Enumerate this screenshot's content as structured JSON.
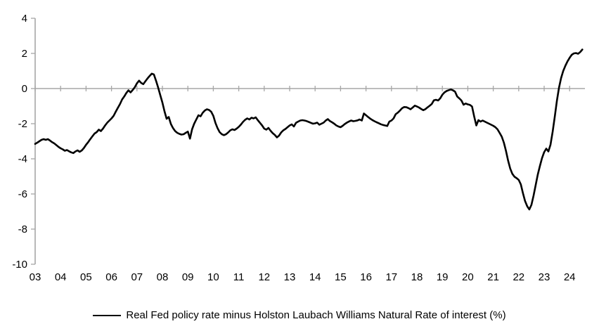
{
  "chart_data": {
    "type": "line",
    "title": "",
    "xlabel": "",
    "ylabel": "",
    "ylim": [
      -10,
      4
    ],
    "y_ticks": [
      4,
      2,
      0,
      -2,
      -4,
      -6,
      -8,
      -10
    ],
    "x_tick_labels": [
      "03",
      "04",
      "05",
      "06",
      "07",
      "08",
      "09",
      "10",
      "11",
      "12",
      "13",
      "14",
      "15",
      "16",
      "17",
      "18",
      "19",
      "20",
      "21",
      "22",
      "23",
      "24"
    ],
    "x_range_years": [
      2003.0,
      2024.6
    ],
    "grid": false,
    "zero_line": true,
    "legend_position": "bottom",
    "line_color": "#000000",
    "axis_color": "#a6a6a6",
    "series": [
      {
        "name": "Real Fed policy rate minus Holston Laubach Williams Natural Rate of interest (%)",
        "x_start": 2003.0,
        "x_step_years": 0.083333,
        "values": [
          -3.15,
          -3.08,
          -3.0,
          -2.92,
          -2.88,
          -2.92,
          -2.88,
          -2.96,
          -3.05,
          -3.12,
          -3.22,
          -3.32,
          -3.4,
          -3.46,
          -3.54,
          -3.5,
          -3.57,
          -3.63,
          -3.67,
          -3.58,
          -3.52,
          -3.6,
          -3.52,
          -3.38,
          -3.2,
          -3.05,
          -2.88,
          -2.72,
          -2.56,
          -2.48,
          -2.34,
          -2.42,
          -2.28,
          -2.1,
          -1.94,
          -1.82,
          -1.7,
          -1.55,
          -1.32,
          -1.1,
          -0.88,
          -0.62,
          -0.45,
          -0.25,
          -0.1,
          -0.22,
          -0.08,
          0.08,
          0.3,
          0.45,
          0.32,
          0.25,
          0.42,
          0.58,
          0.72,
          0.85,
          0.8,
          0.45,
          0.05,
          -0.38,
          -0.8,
          -1.3,
          -1.72,
          -1.62,
          -2.02,
          -2.25,
          -2.42,
          -2.52,
          -2.58,
          -2.62,
          -2.6,
          -2.52,
          -2.45,
          -2.85,
          -2.32,
          -2.0,
          -1.75,
          -1.52,
          -1.58,
          -1.38,
          -1.25,
          -1.18,
          -1.22,
          -1.32,
          -1.55,
          -1.95,
          -2.25,
          -2.48,
          -2.6,
          -2.65,
          -2.6,
          -2.5,
          -2.38,
          -2.32,
          -2.36,
          -2.28,
          -2.18,
          -2.05,
          -1.9,
          -1.78,
          -1.7,
          -1.76,
          -1.66,
          -1.7,
          -1.64,
          -1.8,
          -1.95,
          -2.1,
          -2.28,
          -2.34,
          -2.24,
          -2.4,
          -2.54,
          -2.64,
          -2.78,
          -2.68,
          -2.5,
          -2.38,
          -2.3,
          -2.2,
          -2.1,
          -2.04,
          -2.16,
          -1.95,
          -1.88,
          -1.82,
          -1.8,
          -1.82,
          -1.85,
          -1.9,
          -1.95,
          -2.0,
          -1.98,
          -1.94,
          -2.06,
          -2.0,
          -1.94,
          -1.82,
          -1.74,
          -1.85,
          -1.92,
          -2.0,
          -2.1,
          -2.16,
          -2.2,
          -2.12,
          -2.02,
          -1.94,
          -1.87,
          -1.82,
          -1.86,
          -1.84,
          -1.81,
          -1.76,
          -1.82,
          -1.42,
          -1.52,
          -1.62,
          -1.71,
          -1.79,
          -1.86,
          -1.92,
          -1.97,
          -2.03,
          -2.07,
          -2.1,
          -2.13,
          -1.88,
          -1.82,
          -1.7,
          -1.46,
          -1.37,
          -1.25,
          -1.12,
          -1.05,
          -1.06,
          -1.11,
          -1.18,
          -1.08,
          -0.97,
          -1.02,
          -1.08,
          -1.16,
          -1.23,
          -1.17,
          -1.07,
          -0.98,
          -0.88,
          -0.67,
          -0.64,
          -0.68,
          -0.55,
          -0.35,
          -0.22,
          -0.14,
          -0.09,
          -0.05,
          -0.1,
          -0.18,
          -0.45,
          -0.56,
          -0.68,
          -0.92,
          -0.85,
          -0.9,
          -0.93,
          -1.02,
          -1.58,
          -2.1,
          -1.8,
          -1.88,
          -1.82,
          -1.88,
          -1.94,
          -2.0,
          -2.06,
          -2.12,
          -2.2,
          -2.32,
          -2.52,
          -2.74,
          -3.08,
          -3.55,
          -4.1,
          -4.55,
          -4.85,
          -5.02,
          -5.1,
          -5.2,
          -5.45,
          -5.95,
          -6.4,
          -6.7,
          -6.88,
          -6.62,
          -6.1,
          -5.5,
          -4.9,
          -4.4,
          -3.95,
          -3.62,
          -3.42,
          -3.58,
          -3.2,
          -2.45,
          -1.6,
          -0.7,
          0.05,
          0.6,
          1.0,
          1.3,
          1.55,
          1.75,
          1.92,
          2.0,
          2.02,
          1.98,
          2.08,
          2.22
        ]
      }
    ]
  },
  "legend": {
    "label": "Real Fed policy rate minus Holston Laubach Williams Natural Rate of interest (%)"
  }
}
